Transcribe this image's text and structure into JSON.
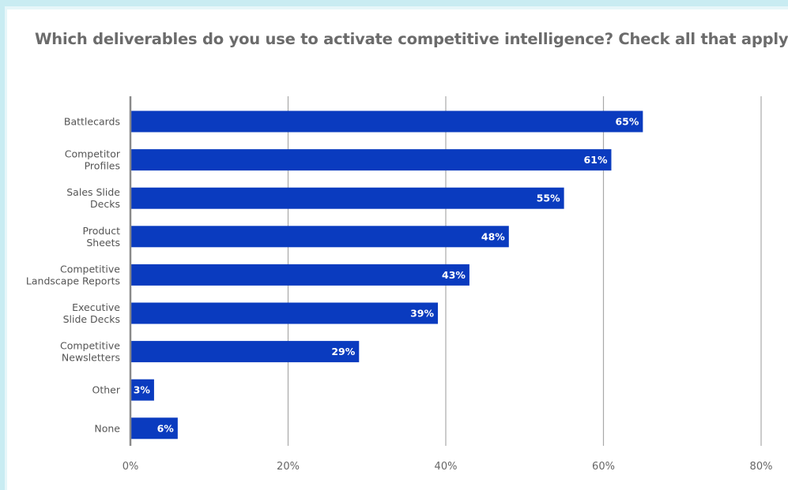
{
  "chart_data": {
    "type": "bar",
    "orientation": "horizontal",
    "title": "Which deliverables do you use to activate competitive intelligence? Check all that apply.",
    "categories": [
      "Battlecards",
      "Competitor Profiles",
      "Sales Slide Decks",
      "Product Sheets",
      "Competitive Landscape Reports",
      "Executive Slide Decks",
      "Competitive Newsletters",
      "Other",
      "None"
    ],
    "category_lines": [
      [
        "Battlecards"
      ],
      [
        "Competitor",
        "Profiles"
      ],
      [
        "Sales Slide",
        "Decks"
      ],
      [
        "Product",
        "Sheets"
      ],
      [
        "Competitive",
        "Landscape Reports"
      ],
      [
        "Executive",
        "Slide Decks"
      ],
      [
        "Competitive",
        "Newsletters"
      ],
      [
        "Other"
      ],
      [
        "None"
      ]
    ],
    "values": [
      65,
      61,
      55,
      48,
      43,
      39,
      29,
      3,
      6
    ],
    "value_labels": [
      "65%",
      "61%",
      "55%",
      "48%",
      "43%",
      "39%",
      "29%",
      "3%",
      "6%"
    ],
    "xlim": [
      0,
      80
    ],
    "xticks": [
      0,
      20,
      40,
      60,
      80
    ],
    "xtick_labels": [
      "0%",
      "20%",
      "40%",
      "60%",
      "80%"
    ],
    "xlabel": "",
    "ylabel": "",
    "grid": true,
    "legend": "none",
    "colors": {
      "bar": "#0a3bbf",
      "grid": "#a9a9a9",
      "axis": "#8a8a8a",
      "frame_accent": "#c9ecf2",
      "title": "#6b6b6b"
    }
  }
}
